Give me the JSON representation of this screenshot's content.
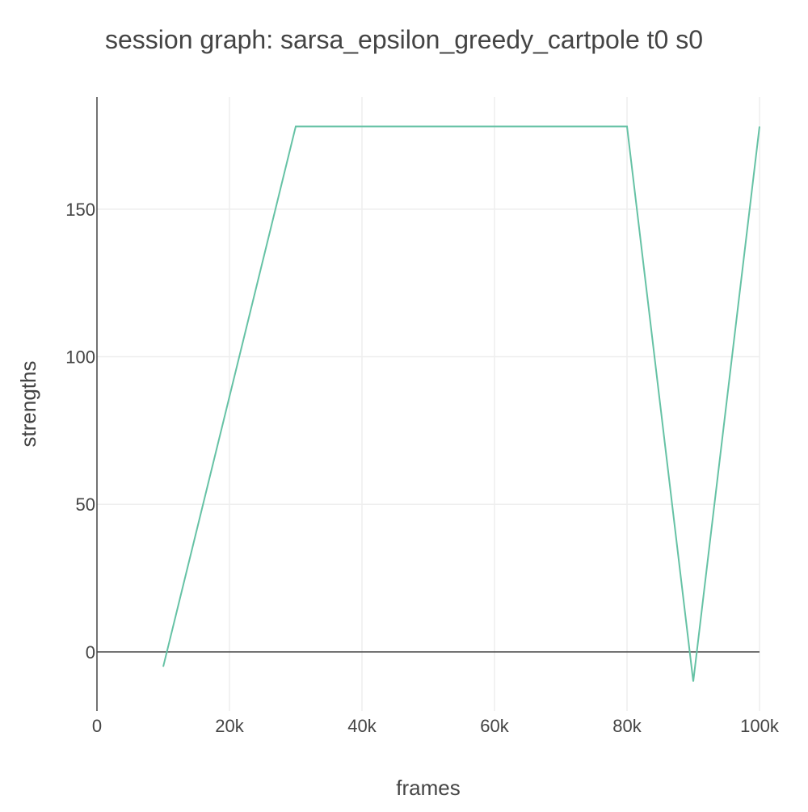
{
  "chart_data": {
    "type": "line",
    "title": "session graph: sarsa_epsilon_greedy_cartpole t0 s0",
    "xlabel": "frames",
    "ylabel": "strengths",
    "xlim": [
      0,
      100000
    ],
    "ylim": [
      -20,
      188
    ],
    "x_ticks": [
      0,
      20000,
      40000,
      60000,
      80000,
      100000
    ],
    "x_tick_labels": [
      "0",
      "20k",
      "40k",
      "60k",
      "80k",
      "100k"
    ],
    "y_ticks": [
      0,
      50,
      100,
      150
    ],
    "y_tick_labels": [
      "0",
      "50",
      "100",
      "150"
    ],
    "grid": true,
    "legend": "none",
    "series": [
      {
        "color": "#66c2a5",
        "x": [
          10000,
          30000,
          80000,
          90000,
          100000
        ],
        "y": [
          -5,
          178,
          178,
          -10,
          178
        ]
      }
    ]
  }
}
